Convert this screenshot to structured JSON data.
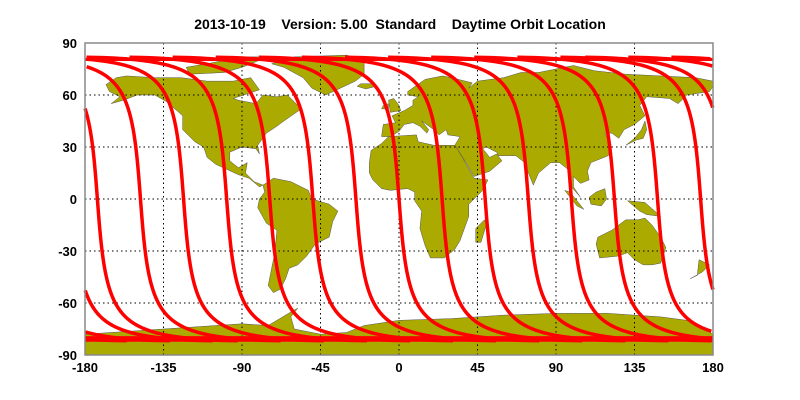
{
  "chart_data": {
    "type": "map",
    "title": "2013-10-19    Version: 5.00  Standard    Daytime Orbit Location",
    "projection": "equirectangular",
    "xlim": [
      -180,
      180
    ],
    "ylim": [
      -90,
      90
    ],
    "x_ticks": [
      "-180",
      "-135",
      "-90",
      "-45",
      "0",
      "45",
      "90",
      "135",
      "180"
    ],
    "y_ticks": [
      "90",
      "60",
      "30",
      "0",
      "-30",
      "-60",
      "-90"
    ],
    "grid": true,
    "land_color": "#aaaa00",
    "track_color": "#ff0000",
    "orbit_tracks": {
      "equator_crossing_longitudes": [
        -172.9,
        -148.2,
        -123.5,
        -98.8,
        -74.1,
        -49.4,
        -24.7,
        0,
        24.7,
        49.4,
        74.1,
        98.8,
        123.5,
        148.2,
        172.9
      ],
      "max_latitude": 82
    }
  }
}
